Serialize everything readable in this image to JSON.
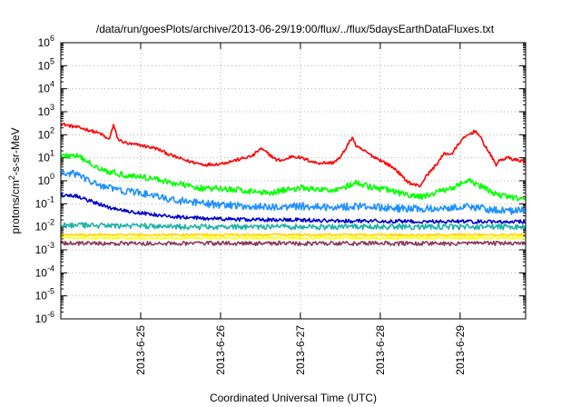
{
  "chart_data": {
    "type": "line",
    "title": "/data/run/goesPlots/archive/2013-06-29/19:00/flux/../flux/5daysEarthDataFluxes.txt",
    "xlabel": "Coordinated Universal Time (UTC)",
    "ylabel": "protons/cm²-s-sr-MeV",
    "ylabel_parts": {
      "pre": "protons/cm",
      "sup": "2",
      "post": "-s-sr-MeV"
    },
    "yscale": "log",
    "ylim": [
      1e-06,
      1000000.0
    ],
    "xlim_days": [
      24.0,
      29.82
    ],
    "y_ticks": [
      {
        "exp": -6,
        "base": "10",
        "sup": "-6"
      },
      {
        "exp": -5,
        "base": "10",
        "sup": "-5"
      },
      {
        "exp": -4,
        "base": "10",
        "sup": "-4"
      },
      {
        "exp": -3,
        "base": "10",
        "sup": "-3"
      },
      {
        "exp": -2,
        "base": "10",
        "sup": "-2"
      },
      {
        "exp": -1,
        "base": "10",
        "sup": "-1"
      },
      {
        "exp": 0,
        "base": "10",
        "sup": "0"
      },
      {
        "exp": 1,
        "base": "10",
        "sup": "1"
      },
      {
        "exp": 2,
        "base": "10",
        "sup": "2"
      },
      {
        "exp": 3,
        "base": "10",
        "sup": "3"
      },
      {
        "exp": 4,
        "base": "10",
        "sup": "4"
      },
      {
        "exp": 5,
        "base": "10",
        "sup": "5"
      },
      {
        "exp": 6,
        "base": "10",
        "sup": "6"
      }
    ],
    "x_ticks": [
      {
        "day": 25,
        "label": "2013-6-25"
      },
      {
        "day": 26,
        "label": "2013-6-26"
      },
      {
        "day": 27,
        "label": "2013-6-27"
      },
      {
        "day": 28,
        "label": "2013-6-28"
      },
      {
        "day": 29,
        "label": "2013-6-29"
      }
    ],
    "grid": true,
    "series": [
      {
        "color": "#ff0000",
        "noise": 0.07,
        "points": [
          [
            24.0,
            300
          ],
          [
            24.1,
            250
          ],
          [
            24.3,
            180
          ],
          [
            24.5,
            110
          ],
          [
            24.6,
            60
          ],
          [
            24.66,
            250
          ],
          [
            24.72,
            60
          ],
          [
            24.85,
            40
          ],
          [
            25.0,
            35
          ],
          [
            25.2,
            25
          ],
          [
            25.4,
            12
          ],
          [
            25.6,
            7
          ],
          [
            25.8,
            5
          ],
          [
            26.0,
            5.5
          ],
          [
            26.2,
            8
          ],
          [
            26.4,
            12
          ],
          [
            26.5,
            25
          ],
          [
            26.6,
            15
          ],
          [
            26.7,
            8
          ],
          [
            26.8,
            8
          ],
          [
            26.9,
            12
          ],
          [
            27.0,
            10
          ],
          [
            27.2,
            6
          ],
          [
            27.4,
            6
          ],
          [
            27.5,
            10
          ],
          [
            27.6,
            40
          ],
          [
            27.65,
            80
          ],
          [
            27.7,
            30
          ],
          [
            27.8,
            20
          ],
          [
            27.9,
            12
          ],
          [
            28.0,
            8
          ],
          [
            28.1,
            5
          ],
          [
            28.2,
            3
          ],
          [
            28.3,
            1.2
          ],
          [
            28.4,
            0.7
          ],
          [
            28.5,
            0.6
          ],
          [
            28.55,
            1.2
          ],
          [
            28.6,
            2
          ],
          [
            28.7,
            5
          ],
          [
            28.8,
            15
          ],
          [
            28.9,
            15
          ],
          [
            29.0,
            50
          ],
          [
            29.1,
            100
          ],
          [
            29.2,
            150
          ],
          [
            29.3,
            40
          ],
          [
            29.35,
            20
          ],
          [
            29.4,
            10
          ],
          [
            29.45,
            5
          ],
          [
            29.5,
            8
          ],
          [
            29.6,
            10
          ],
          [
            29.7,
            8
          ],
          [
            29.82,
            7
          ]
        ]
      },
      {
        "color": "#00ff00",
        "noise": 0.13,
        "points": [
          [
            24.0,
            12
          ],
          [
            24.2,
            12
          ],
          [
            24.4,
            5
          ],
          [
            24.6,
            2.5
          ],
          [
            24.8,
            1.8
          ],
          [
            25.0,
            1.5
          ],
          [
            25.2,
            1.2
          ],
          [
            25.4,
            0.8
          ],
          [
            25.6,
            0.6
          ],
          [
            25.8,
            0.45
          ],
          [
            26.0,
            0.45
          ],
          [
            26.2,
            0.4
          ],
          [
            26.4,
            0.35
          ],
          [
            26.6,
            0.3
          ],
          [
            26.8,
            0.4
          ],
          [
            27.0,
            0.5
          ],
          [
            27.2,
            0.4
          ],
          [
            27.4,
            0.4
          ],
          [
            27.6,
            0.6
          ],
          [
            27.7,
            0.8
          ],
          [
            27.9,
            0.5
          ],
          [
            28.1,
            0.4
          ],
          [
            28.3,
            0.25
          ],
          [
            28.5,
            0.2
          ],
          [
            28.7,
            0.3
          ],
          [
            28.9,
            0.5
          ],
          [
            29.1,
            1.0
          ],
          [
            29.25,
            0.6
          ],
          [
            29.4,
            0.3
          ],
          [
            29.6,
            0.2
          ],
          [
            29.82,
            0.15
          ]
        ]
      },
      {
        "color": "#1e90ff",
        "noise": 0.16,
        "points": [
          [
            24.0,
            2
          ],
          [
            24.2,
            2
          ],
          [
            24.4,
            0.8
          ],
          [
            24.6,
            0.5
          ],
          [
            24.8,
            0.35
          ],
          [
            25.0,
            0.3
          ],
          [
            25.2,
            0.2
          ],
          [
            25.4,
            0.15
          ],
          [
            25.6,
            0.12
          ],
          [
            25.8,
            0.1
          ],
          [
            26.0,
            0.09
          ],
          [
            26.3,
            0.08
          ],
          [
            26.6,
            0.07
          ],
          [
            27.0,
            0.08
          ],
          [
            27.4,
            0.07
          ],
          [
            27.7,
            0.08
          ],
          [
            28.0,
            0.07
          ],
          [
            28.3,
            0.06
          ],
          [
            28.6,
            0.06
          ],
          [
            28.9,
            0.07
          ],
          [
            29.1,
            0.08
          ],
          [
            29.3,
            0.06
          ],
          [
            29.6,
            0.05
          ],
          [
            29.82,
            0.05
          ]
        ]
      },
      {
        "color": "#0000cd",
        "noise": 0.08,
        "points": [
          [
            24.0,
            0.25
          ],
          [
            24.2,
            0.22
          ],
          [
            24.4,
            0.12
          ],
          [
            24.6,
            0.07
          ],
          [
            24.8,
            0.05
          ],
          [
            25.0,
            0.04
          ],
          [
            25.3,
            0.03
          ],
          [
            25.6,
            0.025
          ],
          [
            26.0,
            0.022
          ],
          [
            26.5,
            0.02
          ],
          [
            27.0,
            0.02
          ],
          [
            27.5,
            0.018
          ],
          [
            28.0,
            0.018
          ],
          [
            28.5,
            0.017
          ],
          [
            29.0,
            0.017
          ],
          [
            29.82,
            0.017
          ]
        ]
      },
      {
        "color": "#20b2aa",
        "noise": 0.12,
        "points": [
          [
            24.0,
            0.012
          ],
          [
            24.5,
            0.011
          ],
          [
            25.0,
            0.011
          ],
          [
            25.5,
            0.01
          ],
          [
            26.0,
            0.01
          ],
          [
            26.5,
            0.01
          ],
          [
            27.0,
            0.01
          ],
          [
            27.5,
            0.01
          ],
          [
            28.0,
            0.01
          ],
          [
            28.5,
            0.01
          ],
          [
            29.0,
            0.01
          ],
          [
            29.82,
            0.01
          ]
        ]
      },
      {
        "color": "#ffd700",
        "noise": 0.05,
        "points": [
          [
            24.0,
            0.0045
          ],
          [
            25.0,
            0.0045
          ],
          [
            26.0,
            0.0045
          ],
          [
            27.0,
            0.0045
          ],
          [
            28.0,
            0.0045
          ],
          [
            29.0,
            0.0045
          ],
          [
            29.82,
            0.0045
          ]
        ]
      },
      {
        "color": "#ffff00",
        "noise": 0.05,
        "points": [
          [
            24.0,
            0.0033
          ],
          [
            25.0,
            0.0033
          ],
          [
            26.0,
            0.0033
          ],
          [
            27.0,
            0.0033
          ],
          [
            28.0,
            0.0033
          ],
          [
            29.0,
            0.0033
          ],
          [
            29.82,
            0.0033
          ]
        ]
      },
      {
        "color": "#8b3a62",
        "noise": 0.09,
        "points": [
          [
            24.0,
            0.0019
          ],
          [
            25.0,
            0.0019
          ],
          [
            26.0,
            0.0019
          ],
          [
            27.0,
            0.0019
          ],
          [
            28.0,
            0.0019
          ],
          [
            29.0,
            0.0019
          ],
          [
            29.82,
            0.0019
          ]
        ]
      }
    ]
  }
}
